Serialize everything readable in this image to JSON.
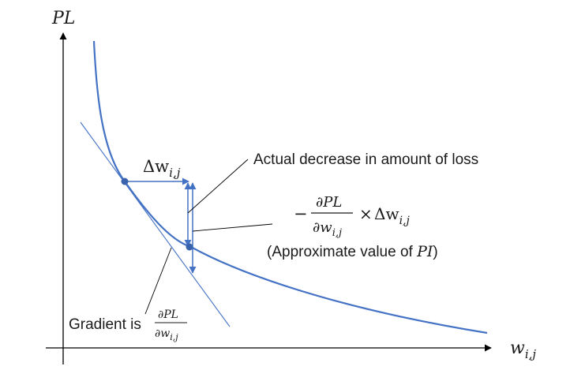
{
  "axes": {
    "y_label": "PL",
    "x_label_base": "w",
    "x_label_sub": "i,j"
  },
  "annotations": {
    "delta_w": {
      "symbol": "Δw",
      "sub": "i,j"
    },
    "actual_decrease": "Actual decrease in amount of loss",
    "approx_formula": {
      "minus": "−",
      "numerator": "∂PL",
      "denominator_base": "∂w",
      "denominator_sub": "i,j",
      "times": "×",
      "delta_base": "Δw",
      "delta_sub": "i,j"
    },
    "approx_label": {
      "prefix": "(Approximate value of ",
      "var": "PI",
      "suffix": ")"
    },
    "gradient": {
      "text": "Gradient is",
      "numerator": "∂PL",
      "denominator_base": "∂w",
      "denominator_sub": "i,j"
    }
  },
  "colors": {
    "curve": "#4472C4",
    "tangent": "#4472C4",
    "arrows": "#4472C4",
    "axes": "#000000",
    "text": "#1a1a1a"
  }
}
